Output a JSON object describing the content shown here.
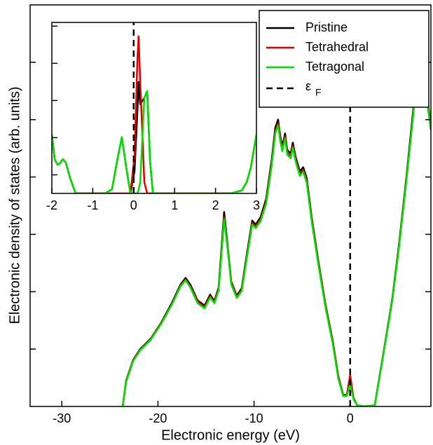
{
  "chart_data": [
    {
      "type": "line",
      "xlabel": "Electronic energy (eV)",
      "ylabel": "Electronic density of states (arb. units)",
      "xlim": [
        -33.3,
        8.4
      ],
      "ylim": [
        0,
        7
      ],
      "xticks": [
        -30,
        -20,
        -10,
        0
      ],
      "yticks": [
        1,
        2,
        3,
        4,
        5,
        6
      ],
      "legend": "upper right",
      "fermi_level": {
        "x": 0,
        "name": "ε",
        "subscript": "F",
        "color": "#000000"
      },
      "x": [
        -23.67,
        -23.31,
        -22.58,
        -21.85,
        -20.76,
        -19.67,
        -18.57,
        -17.63,
        -17.12,
        -16.61,
        -15.88,
        -15.15,
        -14.57,
        -14.13,
        -13.69,
        -13.11,
        -12.75,
        -12.38,
        -11.8,
        -11.29,
        -10.78,
        -10.2,
        -9.83,
        -9.32,
        -8.74,
        -8.16,
        -7.79,
        -7.5,
        -7.28,
        -7.06,
        -6.77,
        -6.55,
        -6.19,
        -5.97,
        -5.68,
        -5.24,
        -4.88,
        -4.52,
        -4.01,
        -3.28,
        -2.55,
        -1.82,
        -1.24,
        -0.73,
        -0.36,
        0,
        0.36,
        0.73,
        1.46,
        2.55,
        3.28,
        4.37,
        5.1,
        5.83,
        6.55,
        6.92,
        7.14,
        7.43,
        7.87,
        8.16,
        8.38
      ],
      "series": [
        {
          "name": "Pristine",
          "color": "#000000",
          "values": [
            0,
            0.45,
            0.81,
            1.0,
            1.18,
            1.46,
            1.8,
            2.13,
            2.24,
            2.12,
            1.85,
            1.76,
            1.95,
            1.84,
            2.07,
            3.39,
            2.8,
            2.18,
            1.93,
            2.06,
            2.62,
            3.24,
            3.17,
            3.3,
            3.62,
            4.3,
            4.86,
            5.0,
            4.72,
            4.53,
            4.76,
            4.47,
            4.41,
            4.6,
            4.35,
            4.1,
            4.17,
            3.98,
            3.3,
            2.5,
            1.76,
            1.15,
            0.53,
            0.2,
            0.2,
            0.46,
            0.14,
            0.02,
            0,
            0.02,
            0.75,
            1.86,
            2.85,
            3.96,
            5.15,
            5.9,
            6.15,
            5.68,
            5.58,
            5.2,
            4.9
          ]
        },
        {
          "name": "Tetrahedral",
          "color": "#e00000",
          "values": [
            0,
            0.44,
            0.8,
            0.99,
            1.17,
            1.45,
            1.78,
            2.11,
            2.21,
            2.09,
            1.83,
            1.73,
            1.92,
            1.82,
            2.04,
            3.3,
            2.77,
            2.16,
            1.91,
            2.03,
            2.58,
            3.2,
            3.14,
            3.26,
            3.57,
            4.24,
            4.8,
            4.94,
            4.67,
            4.49,
            4.71,
            4.42,
            4.36,
            4.55,
            4.31,
            4.06,
            4.12,
            3.94,
            3.27,
            2.47,
            1.74,
            1.13,
            0.52,
            0.19,
            0.19,
            0.55,
            0.13,
            0.02,
            0,
            0.02,
            0.74,
            1.84,
            2.82,
            3.92,
            5.08,
            5.82,
            6.02,
            5.58,
            5.52,
            5.15,
            4.85
          ]
        },
        {
          "name": "Tetragonal",
          "color": "#00e000",
          "values": [
            0,
            0.43,
            0.79,
            0.98,
            1.16,
            1.44,
            1.77,
            2.1,
            2.2,
            2.07,
            1.8,
            1.71,
            1.9,
            1.8,
            2.02,
            3.26,
            2.74,
            2.13,
            1.89,
            2.01,
            2.56,
            3.17,
            3.11,
            3.23,
            3.54,
            4.21,
            4.76,
            4.9,
            4.63,
            4.45,
            4.67,
            4.39,
            4.33,
            4.51,
            4.27,
            4.02,
            4.09,
            3.9,
            3.23,
            2.44,
            1.71,
            1.1,
            0.49,
            0.18,
            0.18,
            0.39,
            0.12,
            0.02,
            0,
            0.02,
            0.73,
            1.83,
            2.8,
            3.9,
            5.06,
            5.79,
            5.98,
            5.55,
            5.49,
            5.12,
            4.82
          ]
        }
      ]
    },
    {
      "type": "line",
      "xlim": [
        -2,
        3
      ],
      "ylim": [
        0,
        4.6
      ],
      "xticks": [
        -2,
        -1,
        0,
        1,
        2,
        3
      ],
      "yticks": [
        0.5,
        1.5,
        2.5,
        3.5,
        4.5
      ],
      "fermi_level": {
        "x": 0,
        "color": "#000000"
      },
      "x": [
        -2,
        -1.93,
        -1.86,
        -1.79,
        -1.73,
        -1.66,
        -1.55,
        -1.42,
        -0.7,
        -0.53,
        -0.39,
        -0.29,
        -0.18,
        -0.08,
        0.02,
        0.09,
        0.12,
        0.16,
        0.26,
        0.33,
        0.4,
        0.47,
        2.38,
        2.64,
        2.76,
        2.86,
        3
      ],
      "series": [
        {
          "name": "Pristine",
          "color": "#000000",
          "values": [
            1.58,
            0.91,
            0.77,
            0.83,
            0.92,
            0.83,
            0.4,
            0,
            0,
            0.11,
            0.96,
            1.51,
            0.68,
            0,
            0.6,
            2.2,
            3.0,
            2.4,
            2.57,
            2.75,
            0.87,
            0,
            0,
            0.08,
            0.3,
            0.68,
            1.58
          ]
        },
        {
          "name": "Tetrahedral",
          "color": "#e00000",
          "values": [
            1.58,
            0.91,
            0.77,
            0.83,
            0.92,
            0.83,
            0.4,
            0,
            0,
            0,
            0,
            0,
            0,
            0,
            1.0,
            3.6,
            4.23,
            3.0,
            0.3,
            0,
            0,
            0,
            0,
            0.08,
            0.3,
            0.68,
            1.58
          ]
        },
        {
          "name": "Tetragonal",
          "color": "#00e000",
          "values": [
            1.58,
            0.91,
            0.77,
            0.83,
            0.92,
            0.83,
            0.4,
            0,
            0,
            0.11,
            0.96,
            1.51,
            0.68,
            0,
            0,
            0,
            0.1,
            0.3,
            2.57,
            2.75,
            0.87,
            0,
            0,
            0.08,
            0.3,
            0.68,
            1.58
          ]
        }
      ]
    }
  ]
}
